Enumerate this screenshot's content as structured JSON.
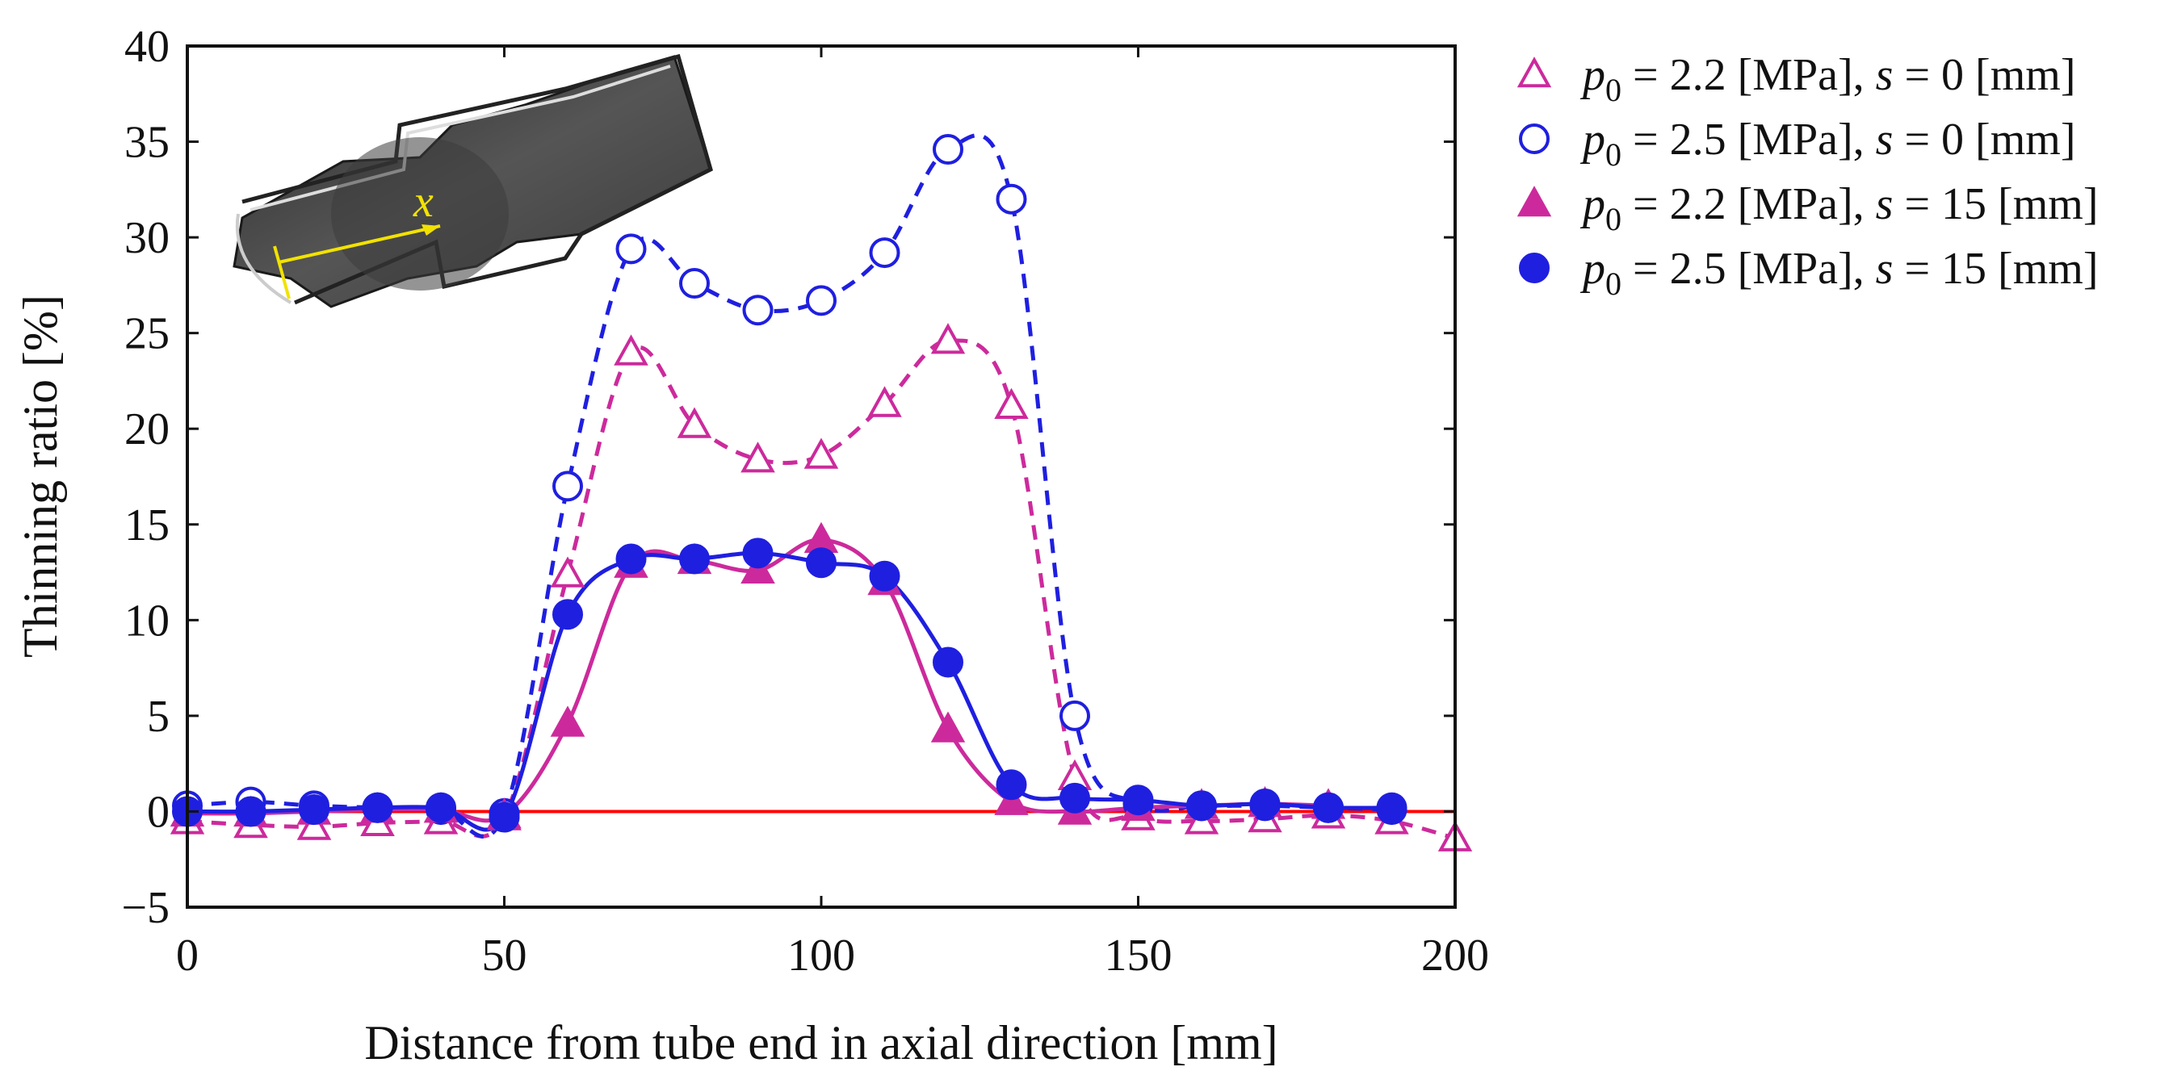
{
  "chart_data": {
    "type": "line",
    "xlabel": "Distance from tube end in axial direction [mm]",
    "ylabel": "Thinning ratio [%]",
    "xlim": [
      0,
      200
    ],
    "ylim": [
      -5,
      40
    ],
    "xticks": [
      0,
      50,
      100,
      150,
      200
    ],
    "yticks": [
      -5,
      0,
      5,
      10,
      15,
      20,
      25,
      30,
      35,
      40
    ],
    "ytick_labels": [
      "−5",
      "0",
      "5",
      "10",
      "15",
      "20",
      "25",
      "30",
      "35",
      "40"
    ],
    "grid": false,
    "legend_position": "outside-right",
    "reference_line": {
      "y": 0,
      "color": "#ff0000"
    },
    "inset": {
      "description_label": "x"
    },
    "series": [
      {
        "name": "p0 = 2.2 [MPa], s = 0 [mm]",
        "legend": {
          "symbol": "p",
          "sub": "0",
          "value": " = 2.2 [MPa], ",
          "s_symbol": "s",
          "s_value": " = 0 [mm]"
        },
        "marker": "triangle-open",
        "line": "dashed",
        "color": "#cc2a9c",
        "x": [
          0,
          10,
          20,
          30,
          40,
          50,
          60,
          70,
          80,
          90,
          100,
          110,
          120,
          130,
          140,
          150,
          160,
          170,
          180,
          190,
          200
        ],
        "y": [
          -0.5,
          -0.7,
          -0.8,
          -0.6,
          -0.5,
          -0.3,
          12.4,
          24.0,
          20.2,
          18.4,
          18.6,
          21.3,
          24.6,
          21.2,
          1.8,
          -0.3,
          -0.5,
          -0.4,
          -0.2,
          -0.5,
          -1.4
        ]
      },
      {
        "name": "p0 = 2.5 [MPa], s = 0 [mm]",
        "legend": {
          "symbol": "p",
          "sub": "0",
          "value": " = 2.5 [MPa], ",
          "s_symbol": "s",
          "s_value": " = 0 [mm]"
        },
        "marker": "circle-open",
        "line": "dashed",
        "color": "#1f1fe0",
        "x": [
          0,
          10,
          20,
          30,
          40,
          50,
          60,
          70,
          80,
          90,
          100,
          110,
          120,
          130,
          140,
          150,
          160,
          170,
          180,
          190
        ],
        "y": [
          0.3,
          0.5,
          0.3,
          0.2,
          0.1,
          -0.1,
          17.0,
          29.4,
          27.6,
          26.2,
          26.7,
          29.2,
          34.6,
          32.0,
          5.0,
          0.4,
          0.3,
          0.3,
          0.2,
          0.1
        ]
      },
      {
        "name": "p0 = 2.2 [MPa], s = 15 [mm]",
        "legend": {
          "symbol": "p",
          "sub": "0",
          "value": " = 2.2 [MPa], ",
          "s_symbol": "s",
          "s_value": " = 15 [mm]"
        },
        "marker": "triangle-filled",
        "line": "solid",
        "color": "#cc2a9c",
        "x": [
          0,
          10,
          20,
          30,
          40,
          50,
          60,
          70,
          80,
          90,
          100,
          110,
          120,
          130,
          140,
          150,
          160,
          170,
          180
        ],
        "y": [
          -0.1,
          -0.1,
          0.0,
          0.1,
          0.1,
          -0.2,
          4.6,
          12.9,
          13.1,
          12.6,
          14.2,
          12.0,
          4.3,
          0.5,
          0.0,
          0.2,
          0.3,
          0.4,
          0.3
        ]
      },
      {
        "name": "p0 = 2.5 [MPa], s = 15 [mm]",
        "legend": {
          "symbol": "p",
          "sub": "0",
          "value": " = 2.5 [MPa], ",
          "s_symbol": "s",
          "s_value": " = 15 [mm]"
        },
        "marker": "circle-filled",
        "line": "solid",
        "color": "#1f1fe0",
        "x": [
          0,
          10,
          20,
          30,
          40,
          50,
          60,
          70,
          80,
          90,
          100,
          110,
          120,
          130,
          140,
          150,
          160,
          170,
          180,
          190
        ],
        "y": [
          0.0,
          0.0,
          0.1,
          0.2,
          0.2,
          -0.3,
          10.3,
          13.2,
          13.2,
          13.5,
          13.0,
          12.3,
          7.8,
          1.4,
          0.7,
          0.6,
          0.3,
          0.4,
          0.2,
          0.2
        ]
      }
    ]
  }
}
